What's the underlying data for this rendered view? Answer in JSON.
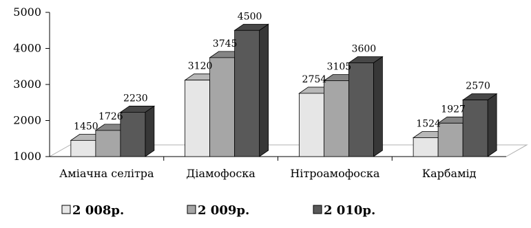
{
  "chart_data": {
    "type": "bar",
    "style": "3d-clustered-column",
    "title": "",
    "xlabel": "",
    "ylabel": "",
    "ylim": [
      1000,
      5000
    ],
    "yticks": [
      1000,
      2000,
      3000,
      4000,
      5000
    ],
    "grid": false,
    "legend_position": "bottom",
    "categories": [
      "Аміачна селітра",
      "Діамофоска",
      "Нітроамофоска",
      "Карбамід"
    ],
    "series": [
      {
        "name": "2 008р.",
        "values": [
          1450,
          3120,
          2754,
          1524
        ],
        "color": "#e6e6e6"
      },
      {
        "name": "2 009р.",
        "values": [
          1726,
          3745,
          3105,
          1927
        ],
        "color": "#a6a6a6"
      },
      {
        "name": "2 010р.",
        "values": [
          2230,
          4500,
          3600,
          2570
        ],
        "color": "#595959"
      }
    ]
  }
}
